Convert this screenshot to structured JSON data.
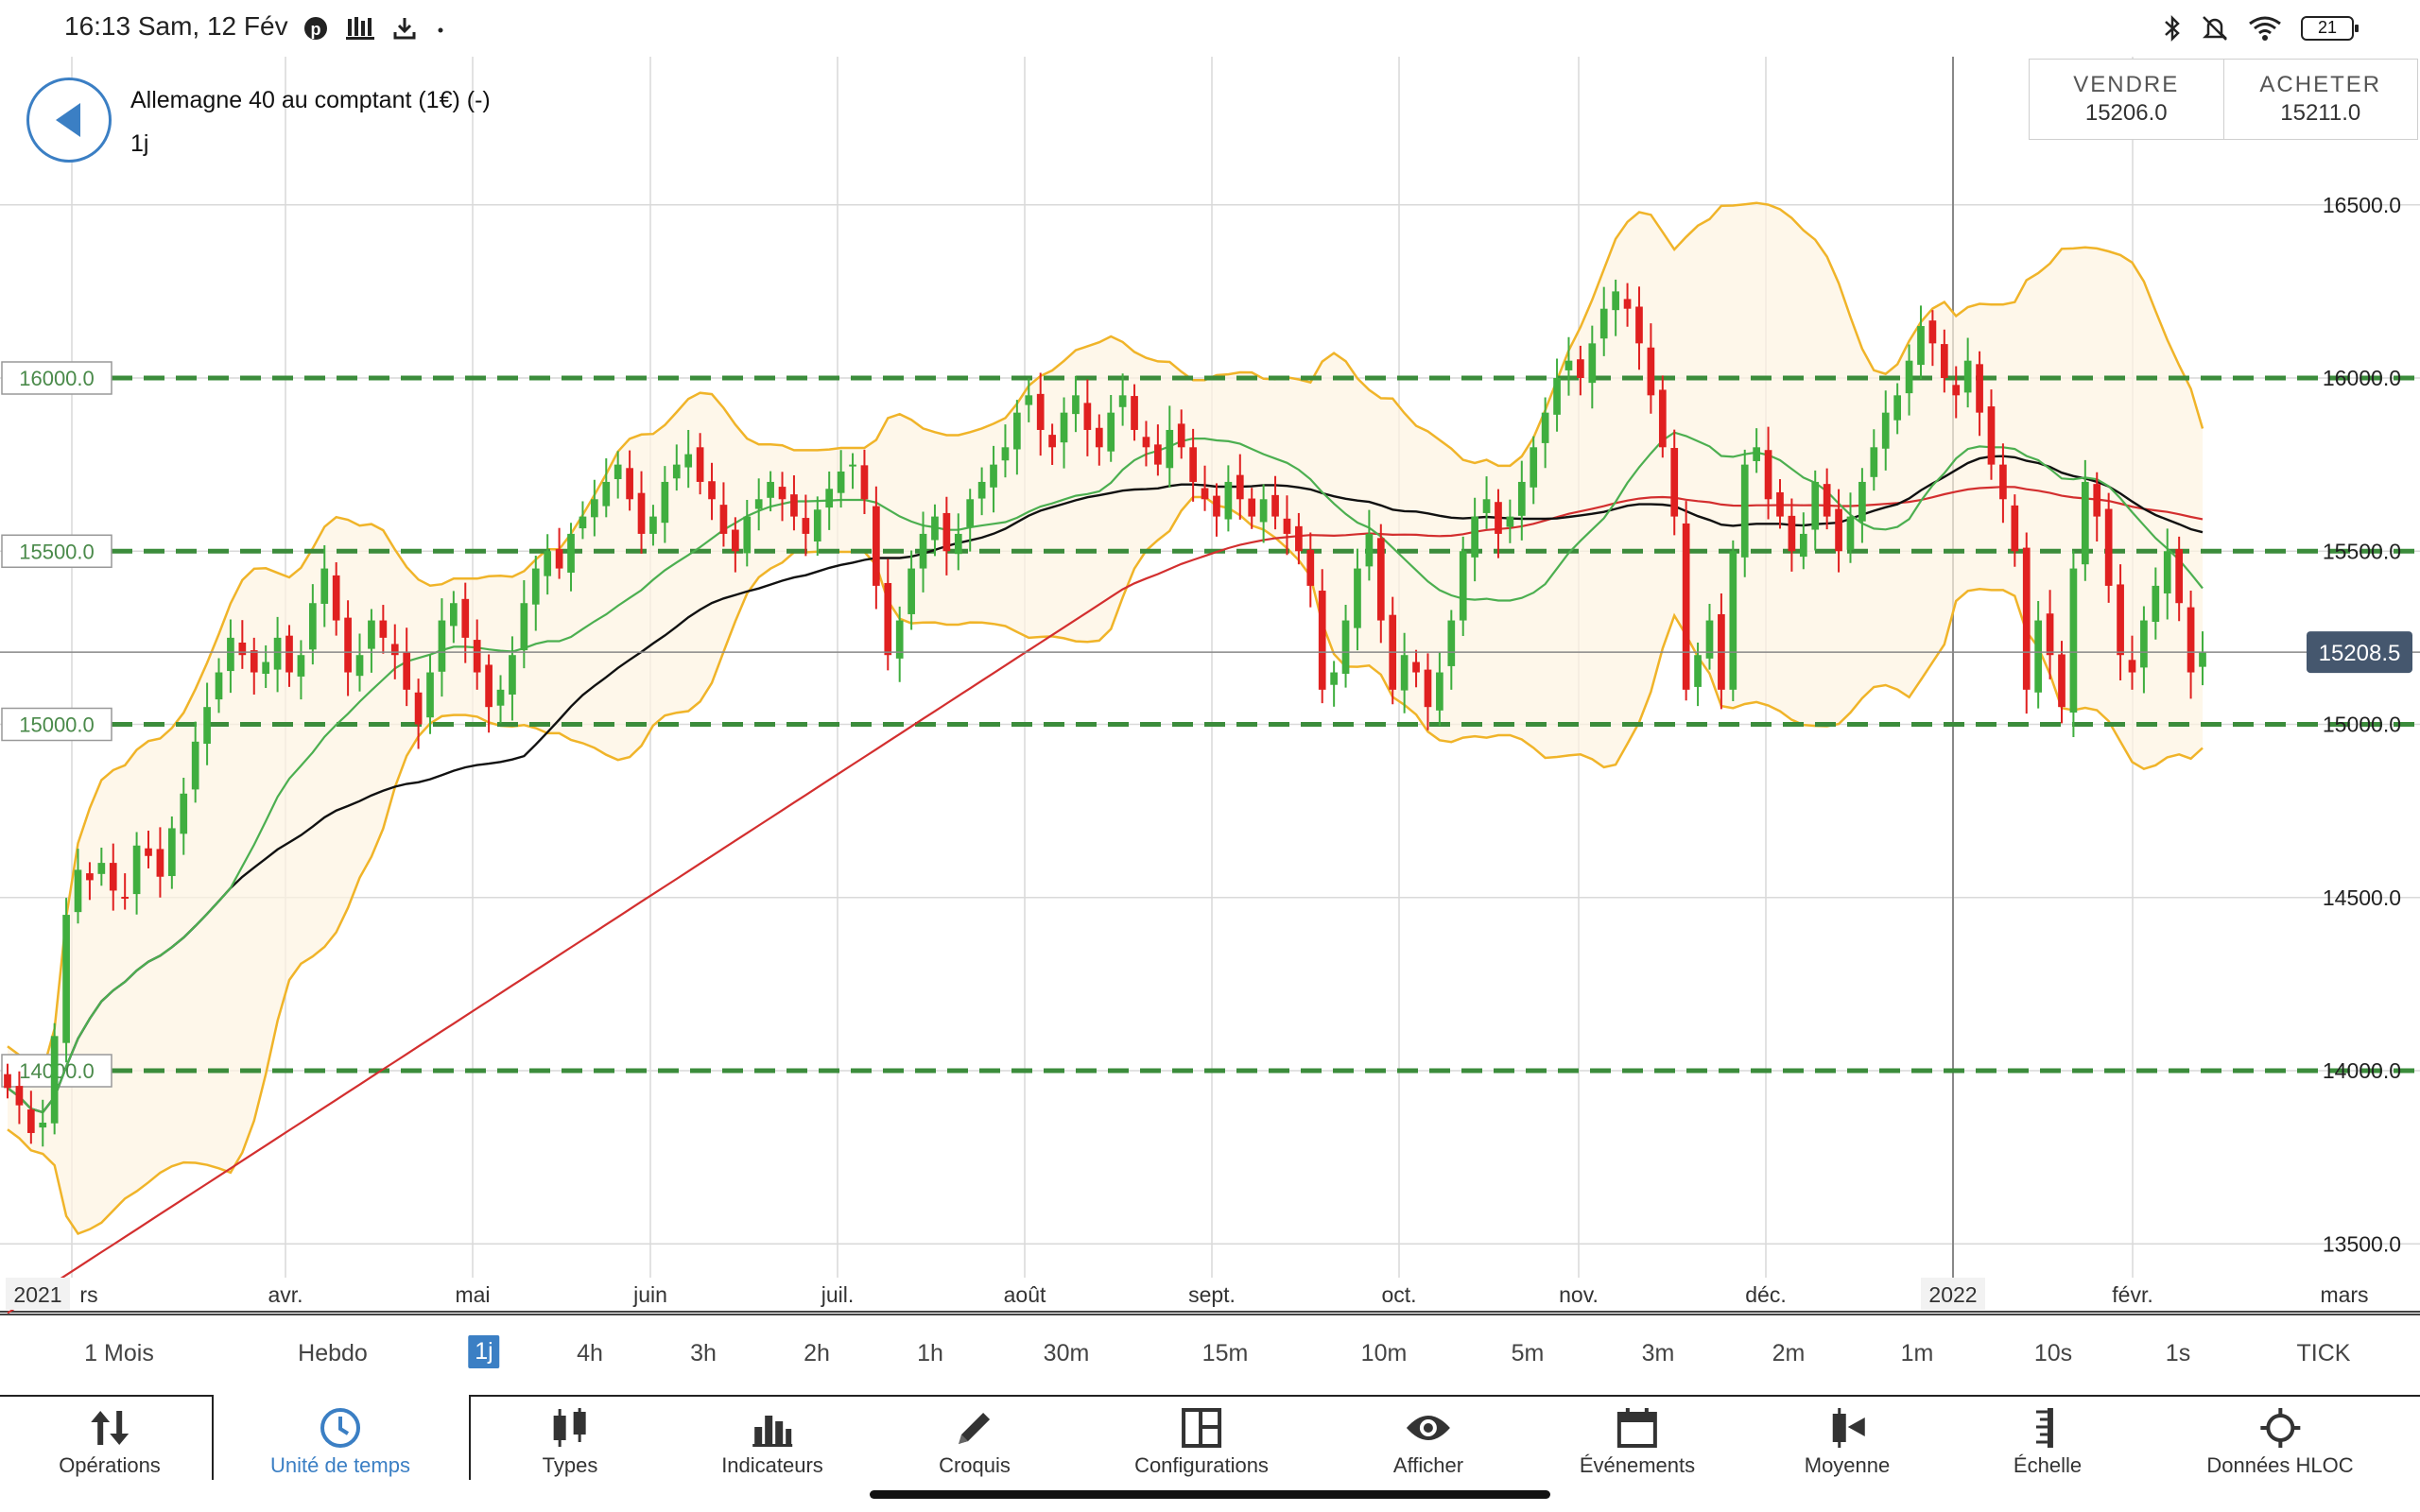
{
  "status_bar": {
    "time_date": "16:13  Sam, 12 Fév",
    "left_icons": [
      "pinterest-icon",
      "bank-icon",
      "download-icon",
      "dot-icon"
    ],
    "right_icons": [
      "bluetooth-icon",
      "bell-off-icon",
      "wifi-icon",
      "battery-icon"
    ],
    "battery_level": "21"
  },
  "header": {
    "instrument": "Allemagne 40 au comptant (1€) (-)",
    "period": "1j",
    "sell_label": "VENDRE",
    "sell_price": "15206.0",
    "buy_label": "ACHETER",
    "buy_price": "15211.0"
  },
  "chart_data": {
    "type": "candlestick",
    "y_axis": {
      "ticks": [
        "16500.0",
        "16000.0",
        "15500.0",
        "15000.0",
        "14500.0",
        "14000.0",
        "13500.0"
      ],
      "range": [
        13400,
        16900
      ]
    },
    "x_axis": {
      "ticks": [
        "2021",
        "rs",
        "avr.",
        "mai",
        "juin",
        "juil.",
        "août",
        "sept.",
        "oct.",
        "nov.",
        "déc.",
        "2022",
        "févr.",
        "mars"
      ]
    },
    "horizontal_levels": [
      {
        "label": "16000.0",
        "value": 16000
      },
      {
        "label": "15500.0",
        "value": 15500
      },
      {
        "label": "15000.0",
        "value": 15000
      },
      {
        "label": "14000.0",
        "value": 14000
      }
    ],
    "current_price_label": "15208.5",
    "current_price": 15208.5,
    "colors": {
      "up": "#3fae3f",
      "down": "#e02020",
      "bollinger": "#f0b429",
      "ma_fast": "#4caf50",
      "ma_mid": "#111111",
      "ma_slow": "#d32f2f",
      "level_line": "#3b8c3b",
      "price_badge": "#45576e"
    },
    "close_series": [
      13950,
      13900,
      13820,
      13850,
      14100,
      14450,
      14580,
      14550,
      14600,
      14520,
      14500,
      14650,
      14620,
      14560,
      14700,
      14800,
      14950,
      15050,
      15150,
      15250,
      15200,
      15150,
      15180,
      15250,
      15150,
      15200,
      15350,
      15450,
      15300,
      15150,
      15200,
      15300,
      15250,
      15200,
      15100,
      15000,
      15150,
      15300,
      15350,
      15250,
      15150,
      15050,
      15100,
      15200,
      15350,
      15450,
      15500,
      15450,
      15550,
      15600,
      15650,
      15700,
      15750,
      15650,
      15550,
      15600,
      15700,
      15750,
      15780,
      15700,
      15650,
      15550,
      15500,
      15600,
      15650,
      15700,
      15650,
      15600,
      15550,
      15620,
      15680,
      15730,
      15750,
      15650,
      15400,
      15200,
      15300,
      15450,
      15550,
      15600,
      15500,
      15550,
      15650,
      15700,
      15750,
      15800,
      15900,
      15950,
      15850,
      15800,
      15900,
      15950,
      15850,
      15800,
      15900,
      15950,
      15850,
      15800,
      15750,
      15850,
      15800,
      15700,
      15650,
      15600,
      15700,
      15650,
      15600,
      15650,
      15600,
      15550,
      15500,
      15400,
      15100,
      15150,
      15300,
      15450,
      15550,
      15300,
      15100,
      15200,
      15150,
      15050,
      15150,
      15300,
      15500,
      15600,
      15650,
      15550,
      15600,
      15700,
      15800,
      15900,
      16000,
      16050,
      16000,
      16100,
      16200,
      16250,
      16200,
      16100,
      15950,
      15800,
      15600,
      15100,
      15200,
      15300,
      15100,
      15500,
      15750,
      15800,
      15650,
      15600,
      15500,
      15550,
      15700,
      15600,
      15500,
      15600,
      15700,
      15800,
      15900,
      15950,
      16050,
      16150,
      16100,
      16000,
      15950,
      16050,
      15900,
      15750,
      15650,
      15500,
      15100,
      15300,
      15200,
      15050,
      15450,
      15700,
      15600,
      15400,
      15200,
      15150,
      15300,
      15400,
      15500,
      15350,
      15150,
      15208.5
    ],
    "moving_averages": [
      "ma-fast",
      "ma-mid",
      "ma-slow"
    ],
    "indicators": [
      "bollinger-bands"
    ]
  },
  "timeframes": {
    "items": [
      "1 Mois",
      "Hebdo",
      "1j",
      "4h",
      "3h",
      "2h",
      "1h",
      "30m",
      "15m",
      "10m",
      "5m",
      "3m",
      "2m",
      "1m",
      "10s",
      "1s",
      "TICK"
    ],
    "active": "1j"
  },
  "toolbar": {
    "items": [
      {
        "label": "Opérations",
        "icon": "sort-arrows-icon"
      },
      {
        "label": "Unité de temps",
        "icon": "clock-icon"
      },
      {
        "label": "Types",
        "icon": "candles-icon"
      },
      {
        "label": "Indicateurs",
        "icon": "bar-chart-icon"
      },
      {
        "label": "Croquis",
        "icon": "pencil-icon"
      },
      {
        "label": "Configurations",
        "icon": "layout-icon"
      },
      {
        "label": "Afficher",
        "icon": "eye-icon"
      },
      {
        "label": "Événements",
        "icon": "calendar-icon"
      },
      {
        "label": "Moyenne",
        "icon": "average-icon"
      },
      {
        "label": "Échelle",
        "icon": "ruler-icon"
      },
      {
        "label": "Données HLOC",
        "icon": "crosshair-icon"
      }
    ],
    "active": "Unité de temps"
  }
}
